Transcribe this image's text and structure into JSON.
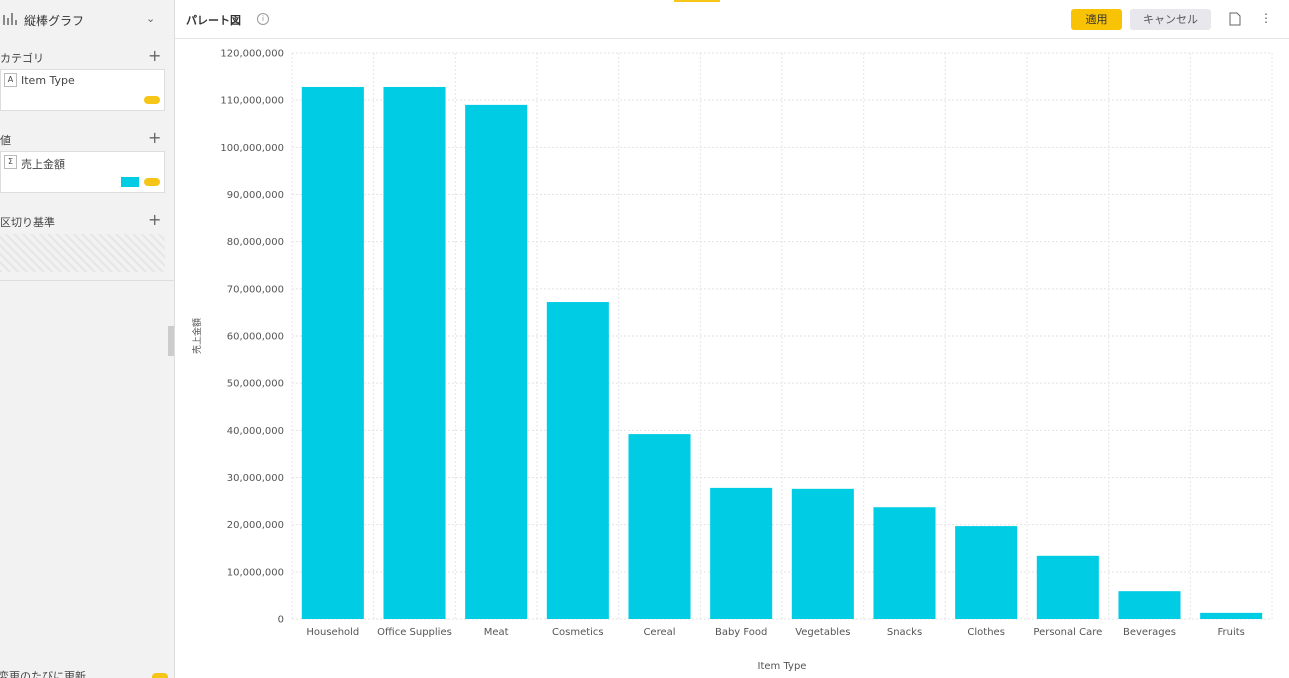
{
  "sidebar": {
    "chart_type": "縦棒グラフ",
    "sections": [
      {
        "title": "カテゴリ",
        "icon": "A",
        "field": "Item Type"
      },
      {
        "title": "値",
        "icon": "Σ",
        "field": "売上金額"
      },
      {
        "title": "区切り基準"
      }
    ],
    "footer": "変更のたびに更新"
  },
  "toolbar": {
    "title": "パレート図",
    "apply": "適用",
    "cancel": "キャンセル"
  },
  "chart_data": {
    "type": "bar",
    "x_label": "Item Type",
    "y_label": "売上金額",
    "color": "#00cde4",
    "grid": true,
    "categories": [
      "Household",
      "Office Supplies",
      "Meat",
      "Cosmetics",
      "Cereal",
      "Baby Food",
      "Vegetables",
      "Snacks",
      "Clothes",
      "Personal Care",
      "Beverages",
      "Fruits"
    ],
    "values": [
      112800000,
      112800000,
      109000000,
      67200000,
      39200000,
      27800000,
      27600000,
      23700000,
      19700000,
      13400000,
      5900000,
      1300000
    ],
    "ylim": [
      0,
      120000000
    ],
    "yticks": [
      0,
      {
        "value": 10000000,
        "label": "10,000,000"
      },
      {
        "value": 20000000,
        "label": "20,000,000"
      },
      {
        "value": 30000000,
        "label": "30,000,000"
      },
      {
        "value": 40000000,
        "label": "40,000,000"
      },
      {
        "value": 50000000,
        "label": "50,000,000"
      },
      {
        "value": 60000000,
        "label": "60,000,000"
      },
      {
        "value": 70000000,
        "label": "70,000,000"
      },
      {
        "value": 80000000,
        "label": "80,000,000"
      },
      {
        "value": 90000000,
        "label": "90,000,000"
      },
      {
        "value": 100000000,
        "label": "100,000,000"
      },
      {
        "value": 110000000,
        "label": "110,000,000"
      },
      {
        "value": 120000000,
        "label": "120,000,000"
      }
    ]
  }
}
